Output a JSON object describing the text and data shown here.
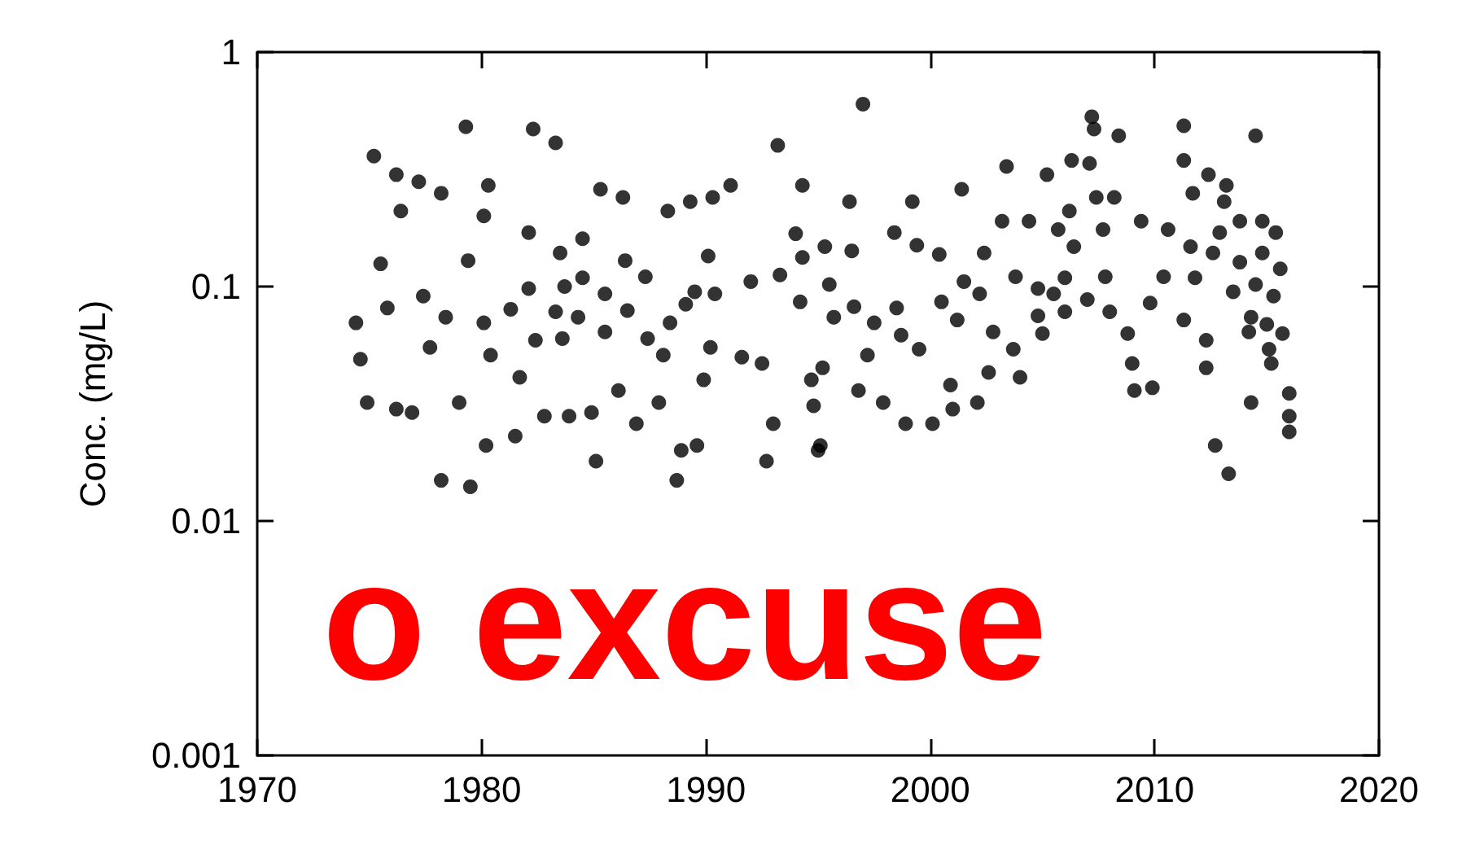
{
  "chart_data": {
    "type": "scatter",
    "ylabel": "Conc. (mg/L)",
    "marker": "circle",
    "log": "y",
    "xlim": [
      1970,
      2020
    ],
    "xticks": [
      1970,
      1980,
      1990,
      2000,
      2010,
      2020
    ],
    "ylim": [
      0.001,
      1
    ],
    "yticks": [
      0.001,
      0.01,
      0.1,
      1
    ],
    "annotations": [
      "o excuse"
    ],
    "series": [
      {
        "color": "#000000",
        "x": [
          1975.2,
          1976.2,
          1977.2,
          1976.4,
          1975.5,
          1979.3,
          1982.3,
          1983.3,
          1978.2,
          1980.3,
          1980.1,
          1982.1,
          1985.3,
          1986.3,
          1988.3,
          1989.3,
          1990.3,
          1991.1,
          1993.2,
          1994.3,
          1974.4,
          1974.6,
          1974.9,
          1975.8,
          1976.2,
          1976.9,
          1977.4,
          1977.7,
          1978.4,
          1979.0,
          1979.4,
          1980.1,
          1980.4,
          1980.2,
          1978.2,
          1979.5,
          1981.3,
          1982.1,
          1982.4,
          1981.7,
          1981.5,
          1982.8,
          1983.5,
          1983.7,
          1983.3,
          1983.6,
          1983.9,
          1984.5,
          1984.5,
          1984.3,
          1984.9,
          1985.5,
          1985.5,
          1985.1,
          1986.4,
          1986.5,
          1986.1,
          1986.9,
          1987.3,
          1987.4,
          1988.1,
          1988.4,
          1987.9,
          1988.7,
          1988.9,
          1989.6,
          1989.1,
          1989.5,
          1990.1,
          1989.9,
          1990.4,
          1990.2,
          1991.6,
          1992.0,
          1992.5,
          1992.7,
          1993.0,
          1993.3,
          1994.0,
          1994.3,
          1994.2,
          1994.7,
          1994.8,
          1995.1,
          1997.0,
          1996.4,
          1995.3,
          1996.5,
          1998.4,
          1999.2,
          1999.4,
          2000.4,
          2001.4,
          1995.5,
          1996.6,
          1995.7,
          1996.8,
          1995.2,
          1995.0,
          1997.5,
          1998.5,
          1998.7,
          1997.2,
          1997.9,
          1998.9,
          2000.1,
          2001.0,
          2000.5,
          1999.5,
          2000.9,
          2001.2,
          2002.1,
          2002.6,
          2002.8,
          2001.5,
          2002.4,
          2002.2,
          2003.2,
          2003.4,
          2003.8,
          2004.0,
          2003.7,
          2004.4,
          2004.8,
          2004.8,
          2005.0,
          2005.2,
          2005.7,
          2005.5,
          2006.0,
          2006.0,
          2006.3,
          2006.2,
          2006.4,
          2007.0,
          2007.1,
          2007.2,
          2007.3,
          2007.4,
          2007.7,
          2007.8,
          2008.2,
          2008.4,
          2008.0,
          2008.8,
          2009.4,
          2009.0,
          2009.1,
          2009.9,
          2009.8,
          2010.4,
          2010.6,
          2011.3,
          2011.3,
          2011.3,
          2011.7,
          2011.6,
          2011.8,
          2012.3,
          2012.3,
          2012.4,
          2012.7,
          2013.3,
          2013.2,
          2013.1,
          2012.9,
          2012.6,
          2013.5,
          2013.8,
          2013.8,
          2014.5,
          2014.3,
          2014.2,
          2014.3,
          2014.8,
          2014.8,
          2014.5,
          2015.0,
          2015.4,
          2015.6,
          2015.3,
          2015.7,
          2015.1,
          2015.2,
          2016.0,
          2016.0,
          2016.0
        ],
        "values": [
          0.36,
          0.3,
          0.28,
          0.21,
          0.125,
          0.48,
          0.47,
          0.41,
          0.25,
          0.27,
          0.2,
          0.17,
          0.26,
          0.24,
          0.21,
          0.23,
          0.24,
          0.27,
          0.4,
          0.27,
          0.07,
          0.049,
          0.032,
          0.081,
          0.03,
          0.029,
          0.091,
          0.055,
          0.074,
          0.032,
          0.129,
          0.07,
          0.051,
          0.021,
          0.0149,
          0.014,
          0.08,
          0.098,
          0.059,
          0.041,
          0.023,
          0.028,
          0.139,
          0.1,
          0.078,
          0.06,
          0.028,
          0.16,
          0.109,
          0.074,
          0.029,
          0.093,
          0.064,
          0.018,
          0.129,
          0.079,
          0.036,
          0.026,
          0.11,
          0.06,
          0.051,
          0.07,
          0.032,
          0.0149,
          0.02,
          0.021,
          0.084,
          0.095,
          0.135,
          0.04,
          0.093,
          0.055,
          0.05,
          0.105,
          0.047,
          0.018,
          0.026,
          0.112,
          0.168,
          0.133,
          0.086,
          0.04,
          0.031,
          0.021,
          0.6,
          0.23,
          0.148,
          0.142,
          0.17,
          0.23,
          0.15,
          0.137,
          0.26,
          0.102,
          0.082,
          0.074,
          0.036,
          0.045,
          0.02,
          0.07,
          0.081,
          0.062,
          0.051,
          0.032,
          0.026,
          0.026,
          0.03,
          0.086,
          0.054,
          0.038,
          0.072,
          0.032,
          0.043,
          0.064,
          0.105,
          0.139,
          0.093,
          0.19,
          0.325,
          0.11,
          0.041,
          0.054,
          0.19,
          0.098,
          0.075,
          0.063,
          0.3,
          0.175,
          0.093,
          0.078,
          0.109,
          0.345,
          0.21,
          0.148,
          0.088,
          0.335,
          0.53,
          0.47,
          0.24,
          0.175,
          0.11,
          0.24,
          0.44,
          0.078,
          0.063,
          0.19,
          0.047,
          0.036,
          0.037,
          0.085,
          0.11,
          0.175,
          0.072,
          0.485,
          0.345,
          0.25,
          0.148,
          0.109,
          0.045,
          0.059,
          0.3,
          0.021,
          0.0159,
          0.27,
          0.23,
          0.17,
          0.139,
          0.095,
          0.19,
          0.127,
          0.44,
          0.032,
          0.064,
          0.074,
          0.19,
          0.139,
          0.102,
          0.069,
          0.17,
          0.119,
          0.091,
          0.063,
          0.054,
          0.047,
          0.035,
          0.028,
          0.024
        ]
      }
    ]
  }
}
